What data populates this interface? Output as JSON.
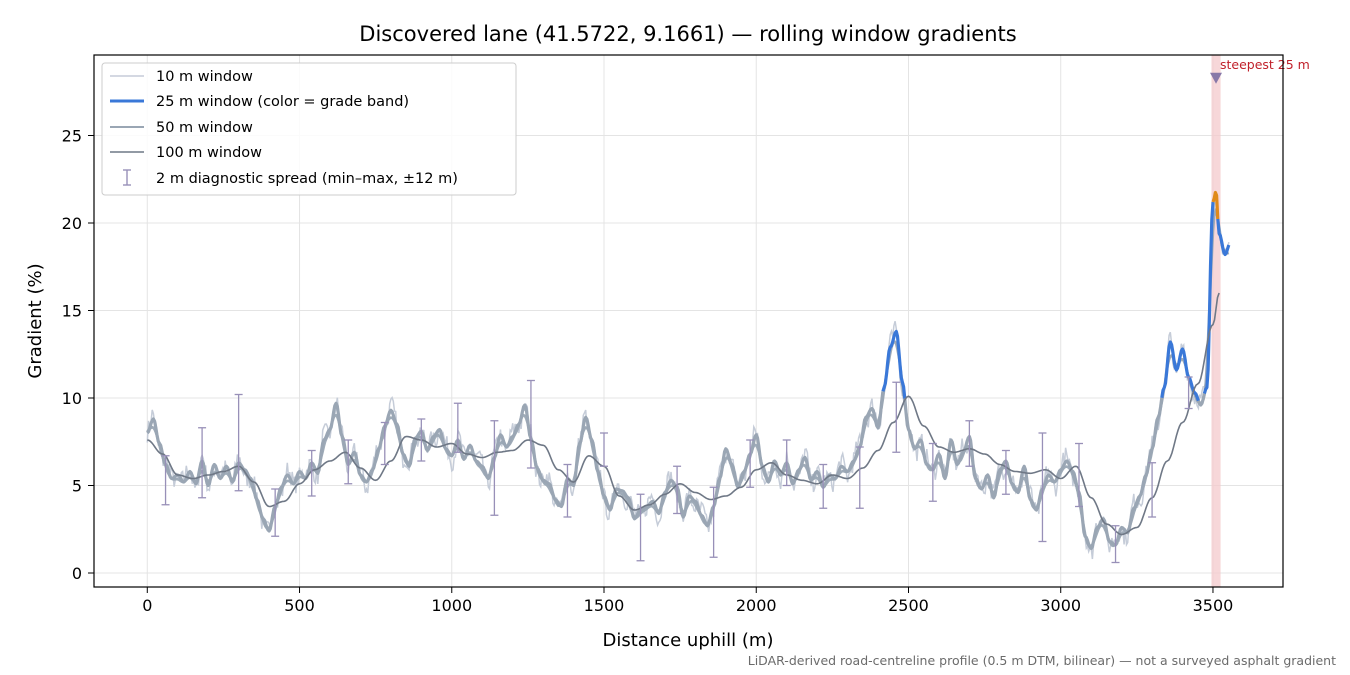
{
  "chart_data": {
    "type": "line",
    "title": "Discovered lane (41.5722, 9.1661) — rolling window gradients",
    "xlabel": "Distance uphill (m)",
    "ylabel": "Gradient (%)",
    "caption": "LiDAR-derived road-centreline profile (0.5 m DTM, bilinear) — not a surveyed asphalt gradient",
    "xlim": [
      -175,
      3730
    ],
    "ylim": [
      -0.8,
      29.6
    ],
    "xticks": [
      0,
      500,
      1000,
      1500,
      2000,
      2500,
      3000,
      3500
    ],
    "yticks": [
      0,
      5,
      10,
      15,
      20,
      25
    ],
    "grid": true,
    "legend_position": "top-left",
    "legend": [
      {
        "label": "10 m window",
        "color": "#c5ccd8",
        "style": "line-thin"
      },
      {
        "label": "25 m window (color = grade band)",
        "color": "#3a78d8",
        "style": "line-thick"
      },
      {
        "label": "50 m window",
        "color": "#9aa6b4",
        "style": "line"
      },
      {
        "label": "100 m window",
        "color": "#6f7886",
        "style": "line"
      },
      {
        "label": "2 m diagnostic spread (min–max, ±12 m)",
        "color": "#9890b8",
        "style": "errorbar"
      }
    ],
    "annotation": {
      "text": "steepest 25 m",
      "x": 3510,
      "y": 28.3,
      "band": [
        3495,
        3525
      ]
    },
    "colors": {
      "w10": "#c5ccd8",
      "w25_low": "#9aa6b4",
      "w25_mid": "#3a78d8",
      "w25_high": "#e08a1a",
      "w50": "#9aa6b4",
      "w100": "#6f7886",
      "spread": "#9890b8",
      "highlight": "#f4c9cc",
      "marker": "#8878a8"
    },
    "series": [
      {
        "name": "25 m window",
        "x": [
          0,
          20,
          40,
          60,
          80,
          100,
          120,
          140,
          160,
          180,
          200,
          220,
          240,
          260,
          280,
          300,
          320,
          340,
          360,
          380,
          400,
          420,
          440,
          460,
          480,
          500,
          520,
          540,
          560,
          580,
          600,
          620,
          640,
          660,
          680,
          700,
          720,
          740,
          760,
          780,
          800,
          820,
          840,
          860,
          880,
          900,
          920,
          940,
          960,
          980,
          1000,
          1020,
          1040,
          1060,
          1080,
          1100,
          1120,
          1140,
          1160,
          1180,
          1200,
          1220,
          1240,
          1260,
          1280,
          1300,
          1320,
          1340,
          1360,
          1380,
          1400,
          1420,
          1440,
          1460,
          1480,
          1500,
          1520,
          1540,
          1560,
          1580,
          1600,
          1620,
          1640,
          1660,
          1680,
          1700,
          1720,
          1740,
          1760,
          1780,
          1800,
          1820,
          1840,
          1860,
          1880,
          1900,
          1920,
          1940,
          1960,
          1980,
          2000,
          2020,
          2040,
          2060,
          2080,
          2100,
          2120,
          2140,
          2160,
          2180,
          2200,
          2220,
          2240,
          2260,
          2280,
          2300,
          2320,
          2340,
          2360,
          2380,
          2400,
          2420,
          2440,
          2460,
          2480,
          2500,
          2520,
          2540,
          2560,
          2580,
          2600,
          2620,
          2640,
          2660,
          2680,
          2700,
          2720,
          2740,
          2760,
          2780,
          2800,
          2820,
          2840,
          2860,
          2880,
          2900,
          2920,
          2940,
          2960,
          2980,
          3000,
          3020,
          3040,
          3060,
          3080,
          3100,
          3120,
          3140,
          3160,
          3180,
          3200,
          3220,
          3240,
          3260,
          3280,
          3300,
          3320,
          3340,
          3360,
          3380,
          3400,
          3420,
          3440,
          3460,
          3480,
          3500,
          3510,
          3520,
          3540,
          3555
        ],
        "values": [
          8.0,
          8.8,
          7.4,
          6.2,
          5.4,
          5.6,
          5.2,
          5.8,
          5.1,
          6.4,
          5.0,
          6.2,
          5.4,
          6.1,
          5.2,
          6.3,
          5.9,
          5.4,
          4.2,
          3.1,
          2.4,
          3.8,
          4.9,
          5.6,
          5.1,
          5.8,
          5.4,
          6.3,
          5.7,
          7.6,
          8.2,
          9.7,
          7.8,
          6.2,
          6.9,
          5.6,
          5.2,
          5.9,
          7.1,
          8.4,
          9.3,
          8.5,
          6.8,
          6.1,
          7.7,
          8.1,
          7.0,
          7.8,
          8.2,
          7.1,
          6.7,
          7.6,
          6.5,
          7.3,
          6.4,
          6.1,
          5.4,
          6.6,
          7.9,
          7.2,
          7.8,
          8.5,
          9.6,
          7.7,
          6.0,
          5.3,
          5.1,
          4.2,
          3.8,
          5.4,
          5.0,
          7.4,
          8.9,
          7.6,
          5.8,
          4.4,
          3.6,
          4.8,
          4.7,
          4.3,
          3.1,
          3.6,
          3.8,
          4.1,
          3.4,
          4.6,
          5.3,
          4.9,
          3.2,
          4.4,
          4.1,
          3.3,
          2.7,
          3.8,
          5.4,
          7.1,
          6.2,
          4.9,
          5.8,
          6.8,
          7.9,
          6.1,
          5.2,
          6.4,
          5.6,
          6.3,
          5.1,
          5.9,
          6.6,
          5.3,
          5.8,
          4.9,
          5.6,
          5.4,
          6.1,
          5.8,
          6.4,
          7.2,
          8.9,
          9.4,
          8.3,
          10.6,
          12.9,
          13.8,
          10.9,
          8.2,
          7.1,
          7.6,
          6.2,
          5.9,
          6.8,
          5.4,
          7.6,
          6.2,
          6.9,
          7.8,
          5.4,
          4.8,
          5.6,
          4.3,
          5.9,
          6.4,
          5.1,
          4.6,
          6.1,
          4.2,
          3.6,
          4.8,
          5.6,
          5.2,
          5.9,
          6.4,
          5.8,
          4.6,
          2.1,
          1.4,
          2.6,
          3.1,
          1.8,
          1.6,
          2.6,
          2.3,
          3.7,
          4.4,
          5.6,
          7.1,
          8.9,
          10.6,
          13.2,
          11.6,
          12.8,
          11.2,
          10.3,
          9.6,
          10.6,
          21.2,
          21.8,
          19.4,
          18.2,
          18.8
        ]
      },
      {
        "name": "100 m window",
        "x": [
          0,
          50,
          100,
          150,
          200,
          250,
          300,
          350,
          400,
          450,
          500,
          550,
          600,
          650,
          700,
          750,
          800,
          850,
          900,
          950,
          1000,
          1050,
          1100,
          1150,
          1200,
          1250,
          1300,
          1350,
          1400,
          1450,
          1500,
          1550,
          1600,
          1650,
          1700,
          1750,
          1800,
          1850,
          1900,
          1950,
          2000,
          2050,
          2100,
          2150,
          2200,
          2250,
          2300,
          2350,
          2400,
          2450,
          2500,
          2550,
          2600,
          2650,
          2700,
          2750,
          2800,
          2850,
          2900,
          2950,
          3000,
          3050,
          3100,
          3150,
          3200,
          3250,
          3300,
          3350,
          3400,
          3450,
          3500,
          3520
        ],
        "values": [
          7.6,
          6.8,
          5.6,
          5.4,
          5.6,
          5.8,
          6.1,
          5.2,
          3.8,
          4.1,
          5.1,
          5.9,
          6.4,
          6.9,
          6.0,
          5.3,
          6.4,
          7.8,
          7.6,
          7.2,
          7.4,
          6.8,
          6.6,
          6.9,
          7.0,
          7.6,
          7.3,
          5.9,
          5.2,
          6.7,
          6.1,
          4.4,
          3.6,
          3.9,
          4.5,
          5.1,
          4.6,
          4.2,
          4.4,
          4.9,
          5.9,
          6.3,
          5.6,
          5.3,
          5.1,
          5.6,
          5.4,
          6.0,
          7.0,
          8.6,
          10.1,
          8.4,
          7.2,
          6.9,
          7.1,
          6.8,
          6.2,
          5.8,
          5.7,
          5.9,
          5.4,
          6.1,
          4.3,
          2.8,
          2.2,
          2.6,
          4.3,
          6.4,
          8.6,
          10.8,
          14.2,
          16.0
        ]
      }
    ],
    "spread": [
      {
        "x": 60,
        "min": 3.9,
        "max": 6.7
      },
      {
        "x": 180,
        "min": 4.3,
        "max": 8.3
      },
      {
        "x": 300,
        "min": 4.7,
        "max": 10.2
      },
      {
        "x": 420,
        "min": 2.1,
        "max": 4.8
      },
      {
        "x": 540,
        "min": 4.4,
        "max": 7.0
      },
      {
        "x": 660,
        "min": 5.1,
        "max": 7.6
      },
      {
        "x": 780,
        "min": 6.2,
        "max": 8.6
      },
      {
        "x": 900,
        "min": 6.4,
        "max": 8.8
      },
      {
        "x": 1020,
        "min": 6.9,
        "max": 9.7
      },
      {
        "x": 1140,
        "min": 3.3,
        "max": 8.7
      },
      {
        "x": 1260,
        "min": 6.0,
        "max": 11.0
      },
      {
        "x": 1380,
        "min": 3.2,
        "max": 6.2
      },
      {
        "x": 1500,
        "min": 6.1,
        "max": 8.0
      },
      {
        "x": 1620,
        "min": 0.7,
        "max": 4.5
      },
      {
        "x": 1740,
        "min": 3.4,
        "max": 6.1
      },
      {
        "x": 1860,
        "min": 0.9,
        "max": 4.9
      },
      {
        "x": 1980,
        "min": 4.9,
        "max": 7.6
      },
      {
        "x": 2100,
        "min": 5.0,
        "max": 7.6
      },
      {
        "x": 2220,
        "min": 3.7,
        "max": 6.2
      },
      {
        "x": 2340,
        "min": 3.7,
        "max": 7.2
      },
      {
        "x": 2460,
        "min": 6.9,
        "max": 10.9
      },
      {
        "x": 2580,
        "min": 4.1,
        "max": 7.4
      },
      {
        "x": 2700,
        "min": 6.1,
        "max": 8.7
      },
      {
        "x": 2820,
        "min": 4.5,
        "max": 7.0
      },
      {
        "x": 2940,
        "min": 1.8,
        "max": 8.0
      },
      {
        "x": 3060,
        "min": 3.8,
        "max": 7.4
      },
      {
        "x": 3180,
        "min": 0.6,
        "max": 2.7
      },
      {
        "x": 3300,
        "min": 3.2,
        "max": 6.3
      },
      {
        "x": 3420,
        "min": 9.4,
        "max": 11.2
      }
    ]
  }
}
